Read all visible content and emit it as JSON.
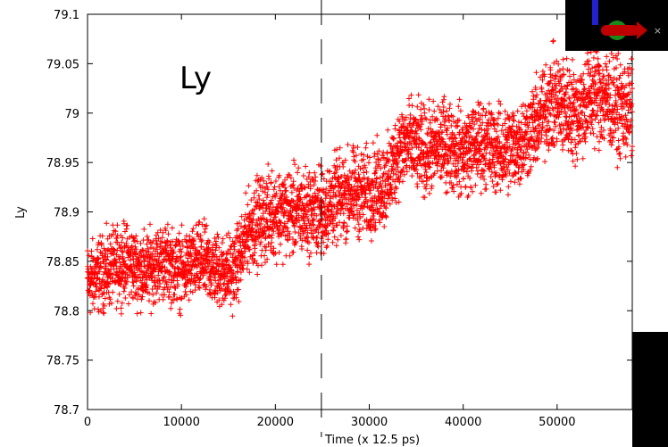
{
  "chart_data": {
    "type": "scatter",
    "title": "",
    "annotation": "Ly",
    "xlabel": "Time (x 12.5 ps)",
    "ylabel": "Ly",
    "xlim": [
      0,
      58000
    ],
    "ylim": [
      78.7,
      79.1
    ],
    "x_ticks": [
      0,
      10000,
      20000,
      30000,
      40000,
      50000
    ],
    "x_tick_labels": [
      "0",
      "10000",
      "20000",
      "30000",
      "40000",
      "50000"
    ],
    "y_ticks": [
      78.7,
      78.75,
      78.8,
      78.85,
      78.9,
      78.95,
      79.0,
      79.05,
      79.1
    ],
    "y_tick_labels": [
      "78.7",
      "78.75",
      "78.8",
      "78.85",
      "78.9",
      "78.95",
      "79",
      "79.05",
      "79.1"
    ],
    "marker": "+",
    "grid": false,
    "vertical_marker_x": 24900,
    "series": [
      {
        "color": "#ff0000",
        "x": [
          0,
          2000,
          4000,
          6000,
          8000,
          10000,
          12000,
          14000,
          15500,
          16500,
          17000,
          18000,
          20000,
          22000,
          24000,
          25000,
          26000,
          28000,
          30000,
          32000,
          33000,
          34000,
          36000,
          38000,
          40000,
          42000,
          44000,
          46000,
          48000,
          49000,
          50000,
          52000,
          54000,
          56000,
          58000
        ],
        "y": [
          78.83,
          78.84,
          78.85,
          78.84,
          78.85,
          78.84,
          78.85,
          78.84,
          78.84,
          78.86,
          78.88,
          78.89,
          78.9,
          78.9,
          78.9,
          78.9,
          78.91,
          78.92,
          78.92,
          78.93,
          78.96,
          78.97,
          78.96,
          78.97,
          78.96,
          78.97,
          78.96,
          78.97,
          78.99,
          79.01,
          79.01,
          79.0,
          79.02,
          79.01,
          79.0
        ],
        "noise": [
          0.03,
          0.03,
          0.03,
          0.03,
          0.03,
          0.03,
          0.03,
          0.03,
          0.03,
          0.03,
          0.03,
          0.035,
          0.035,
          0.035,
          0.035,
          0.035,
          0.035,
          0.035,
          0.035,
          0.035,
          0.035,
          0.035,
          0.035,
          0.035,
          0.035,
          0.035,
          0.035,
          0.035,
          0.035,
          0.04,
          0.04,
          0.04,
          0.04,
          0.04,
          0.04
        ]
      }
    ]
  },
  "widget": {
    "close_glyph": "×"
  },
  "colors": {
    "points": "#ff0000",
    "axes_widget_bg": "#000000"
  }
}
